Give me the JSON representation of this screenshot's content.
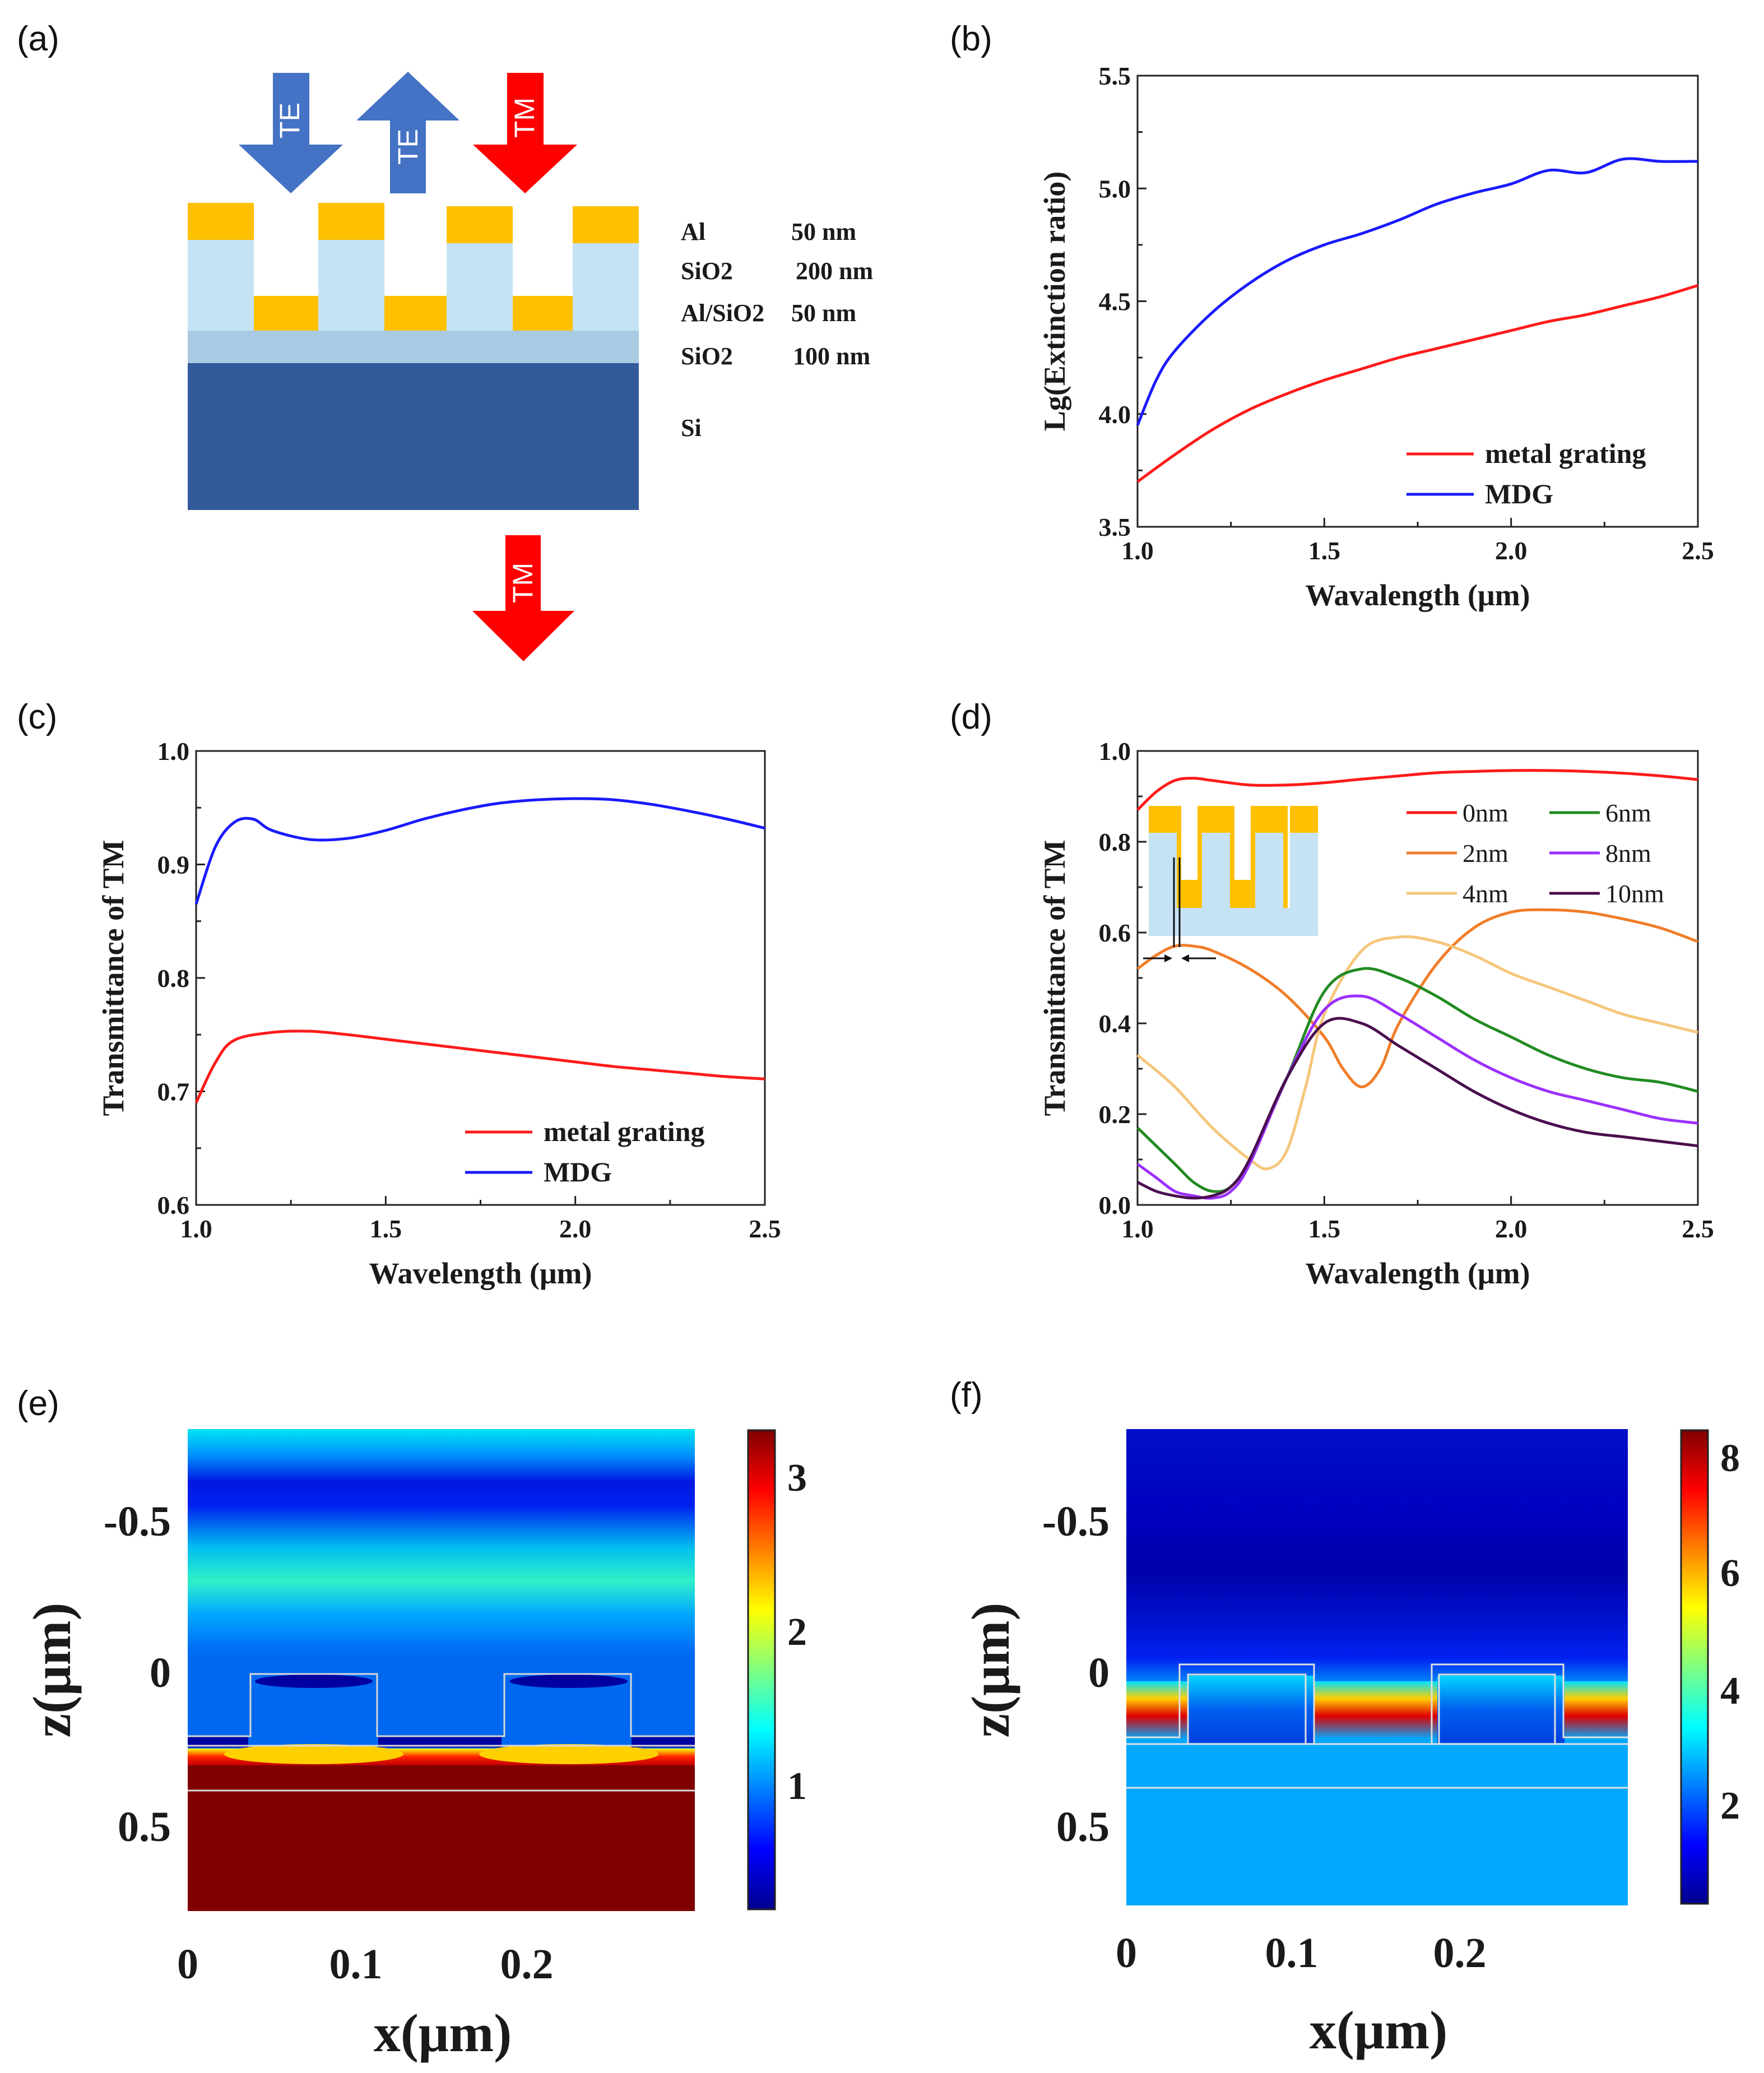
{
  "panels": {
    "a": {
      "label": "(a)",
      "arrows": [
        "TE",
        "TE",
        "TM",
        "TM"
      ],
      "layers": [
        {
          "name": "Al",
          "thickness": "50 nm"
        },
        {
          "name": "SiO2",
          "thickness": "200 nm"
        },
        {
          "name": "Al/SiO2",
          "thickness": "50 nm"
        },
        {
          "name": "SiO2",
          "thickness": "100 nm"
        },
        {
          "name": "Si",
          "thickness": ""
        }
      ],
      "colors": {
        "metal": "#ffc000",
        "oxide": "#c5e3f5",
        "spacer": "#a8cbe3",
        "silicon": "#335a9a",
        "te": "#4472c4",
        "tm": "#ff0000"
      }
    },
    "b": {
      "label": "(b)"
    },
    "c": {
      "label": "(c)"
    },
    "d": {
      "label": "(d)"
    },
    "e": {
      "label": "(e)"
    },
    "f": {
      "label": "(f)"
    }
  },
  "chart_data": [
    {
      "id": "b",
      "type": "line",
      "xlabel": "Wavalength (μm)",
      "ylabel": "Lg(Extinction ratio)",
      "xlim": [
        1.0,
        2.5
      ],
      "ylim": [
        3.5,
        5.5
      ],
      "xticks": [
        "1.0",
        "1.5",
        "2.0",
        "2.5"
      ],
      "yticks": [
        "3.5",
        "4.0",
        "4.5",
        "5.0",
        "5.5"
      ],
      "legend": "bottom-right",
      "series": [
        {
          "name": "metal grating",
          "color": "#ff1a1a",
          "x": [
            1.0,
            1.1,
            1.2,
            1.3,
            1.4,
            1.5,
            1.6,
            1.7,
            1.8,
            1.9,
            2.0,
            2.1,
            2.2,
            2.3,
            2.4,
            2.5
          ],
          "y": [
            3.7,
            3.82,
            3.93,
            4.02,
            4.09,
            4.15,
            4.2,
            4.25,
            4.29,
            4.33,
            4.37,
            4.41,
            4.44,
            4.48,
            4.52,
            4.57
          ]
        },
        {
          "name": "MDG",
          "color": "#1a1aff",
          "x": [
            1.0,
            1.05,
            1.1,
            1.2,
            1.3,
            1.4,
            1.5,
            1.6,
            1.7,
            1.8,
            1.9,
            2.0,
            2.1,
            2.2,
            2.3,
            2.4,
            2.5
          ],
          "y": [
            3.95,
            4.15,
            4.28,
            4.45,
            4.58,
            4.68,
            4.75,
            4.8,
            4.86,
            4.93,
            4.98,
            5.02,
            5.08,
            5.07,
            5.13,
            5.12,
            5.12
          ]
        }
      ]
    },
    {
      "id": "c",
      "type": "line",
      "xlabel": "Wavelength (μm)",
      "ylabel": "Transmittance of TM",
      "xlim": [
        1.0,
        2.5
      ],
      "ylim": [
        0.6,
        1.0
      ],
      "xticks": [
        "1.0",
        "1.5",
        "2.0",
        "2.5"
      ],
      "yticks": [
        "0.6",
        "0.7",
        "0.8",
        "0.9",
        "1.0"
      ],
      "legend": "bottom-right",
      "series": [
        {
          "name": "metal grating",
          "color": "#ff1a1a",
          "x": [
            1.0,
            1.05,
            1.1,
            1.2,
            1.3,
            1.4,
            1.5,
            1.6,
            1.7,
            1.8,
            1.9,
            2.0,
            2.1,
            2.2,
            2.3,
            2.4,
            2.5
          ],
          "y": [
            0.69,
            0.725,
            0.745,
            0.752,
            0.753,
            0.75,
            0.746,
            0.742,
            0.738,
            0.734,
            0.73,
            0.726,
            0.722,
            0.719,
            0.716,
            0.713,
            0.711
          ]
        },
        {
          "name": "MDG",
          "color": "#1a1aff",
          "x": [
            1.0,
            1.05,
            1.1,
            1.15,
            1.2,
            1.3,
            1.4,
            1.5,
            1.6,
            1.7,
            1.8,
            1.9,
            2.0,
            2.1,
            2.2,
            2.3,
            2.4,
            2.5
          ],
          "y": [
            0.865,
            0.915,
            0.937,
            0.94,
            0.93,
            0.922,
            0.923,
            0.93,
            0.94,
            0.948,
            0.954,
            0.957,
            0.958,
            0.957,
            0.953,
            0.947,
            0.94,
            0.932
          ]
        }
      ]
    },
    {
      "id": "d",
      "type": "line",
      "xlabel": "Wavalength (μm)",
      "ylabel": "Transmittance of TM",
      "xlim": [
        1.0,
        2.5
      ],
      "ylim": [
        0.0,
        1.0
      ],
      "xticks": [
        "1.0",
        "1.5",
        "2.0",
        "2.5"
      ],
      "yticks": [
        "0.0",
        "0.2",
        "0.4",
        "0.6",
        "0.8",
        "1.0"
      ],
      "legend": "top-right",
      "series": [
        {
          "name": "0nm",
          "color": "#ff1a1a",
          "x": [
            1.0,
            1.05,
            1.1,
            1.15,
            1.2,
            1.3,
            1.4,
            1.5,
            1.6,
            1.7,
            1.8,
            1.9,
            2.0,
            2.1,
            2.2,
            2.3,
            2.4,
            2.5
          ],
          "y": [
            0.87,
            0.91,
            0.935,
            0.94,
            0.935,
            0.925,
            0.925,
            0.93,
            0.938,
            0.945,
            0.952,
            0.955,
            0.957,
            0.957,
            0.955,
            0.951,
            0.945,
            0.937
          ]
        },
        {
          "name": "2nm",
          "color": "#f07d28",
          "x": [
            1.0,
            1.05,
            1.1,
            1.15,
            1.2,
            1.3,
            1.4,
            1.5,
            1.55,
            1.6,
            1.65,
            1.7,
            1.8,
            1.9,
            2.0,
            2.1,
            2.2,
            2.3,
            2.4,
            2.5
          ],
          "y": [
            0.52,
            0.55,
            0.57,
            0.57,
            0.56,
            0.52,
            0.46,
            0.37,
            0.3,
            0.26,
            0.3,
            0.4,
            0.53,
            0.61,
            0.645,
            0.65,
            0.645,
            0.63,
            0.61,
            0.58
          ]
        },
        {
          "name": "4nm",
          "color": "#f5c67a",
          "x": [
            1.0,
            1.1,
            1.2,
            1.3,
            1.35,
            1.4,
            1.45,
            1.5,
            1.6,
            1.7,
            1.8,
            1.9,
            2.0,
            2.1,
            2.2,
            2.3,
            2.4,
            2.5
          ],
          "y": [
            0.33,
            0.26,
            0.17,
            0.1,
            0.08,
            0.12,
            0.26,
            0.42,
            0.56,
            0.59,
            0.58,
            0.55,
            0.51,
            0.48,
            0.45,
            0.42,
            0.4,
            0.38
          ]
        },
        {
          "name": "6nm",
          "color": "#228b22",
          "x": [
            1.0,
            1.1,
            1.15,
            1.2,
            1.25,
            1.3,
            1.4,
            1.5,
            1.6,
            1.7,
            1.8,
            1.9,
            2.0,
            2.1,
            2.2,
            2.3,
            2.4,
            2.5
          ],
          "y": [
            0.17,
            0.09,
            0.05,
            0.03,
            0.04,
            0.1,
            0.28,
            0.47,
            0.52,
            0.5,
            0.46,
            0.41,
            0.37,
            0.33,
            0.3,
            0.28,
            0.27,
            0.25
          ]
        },
        {
          "name": "8nm",
          "color": "#9b30ff",
          "x": [
            1.0,
            1.05,
            1.1,
            1.15,
            1.2,
            1.25,
            1.3,
            1.4,
            1.5,
            1.6,
            1.7,
            1.8,
            1.9,
            2.0,
            2.1,
            2.2,
            2.3,
            2.4,
            2.5
          ],
          "y": [
            0.09,
            0.06,
            0.03,
            0.02,
            0.015,
            0.03,
            0.09,
            0.28,
            0.43,
            0.46,
            0.42,
            0.37,
            0.32,
            0.28,
            0.25,
            0.23,
            0.21,
            0.19,
            0.18
          ]
        },
        {
          "name": "10nm",
          "color": "#4a0e4e",
          "x": [
            1.0,
            1.05,
            1.1,
            1.15,
            1.2,
            1.25,
            1.3,
            1.4,
            1.5,
            1.6,
            1.7,
            1.8,
            1.9,
            2.0,
            2.1,
            2.2,
            2.3,
            2.4,
            2.5
          ],
          "y": [
            0.05,
            0.03,
            0.02,
            0.015,
            0.02,
            0.04,
            0.1,
            0.28,
            0.4,
            0.4,
            0.35,
            0.3,
            0.25,
            0.21,
            0.18,
            0.16,
            0.15,
            0.14,
            0.13
          ]
        }
      ]
    },
    {
      "id": "e",
      "type": "heatmap",
      "xlabel": "x(μm)",
      "ylabel": "z(μm)",
      "xlim": [
        0,
        0.3
      ],
      "ylim": [
        -0.8,
        0.8
      ],
      "xticks": [
        "0",
        "0.1",
        "0.2"
      ],
      "yticks": [
        "-0.5",
        "0",
        "0.5"
      ],
      "colorbar": {
        "range": [
          0.2,
          3.3
        ],
        "ticks": [
          "3",
          "2",
          "1"
        ]
      }
    },
    {
      "id": "f",
      "type": "heatmap",
      "xlabel": "x(μm)",
      "ylabel": "z(μm)",
      "xlim": [
        0,
        0.3
      ],
      "ylim": [
        -0.8,
        0.8
      ],
      "xticks": [
        "0",
        "0.1",
        "0.2"
      ],
      "yticks": [
        "-0.5",
        "0",
        "0.5"
      ],
      "colorbar": {
        "range": [
          0.3,
          8.4
        ],
        "ticks": [
          "8",
          "6",
          "4",
          "2"
        ]
      }
    }
  ]
}
